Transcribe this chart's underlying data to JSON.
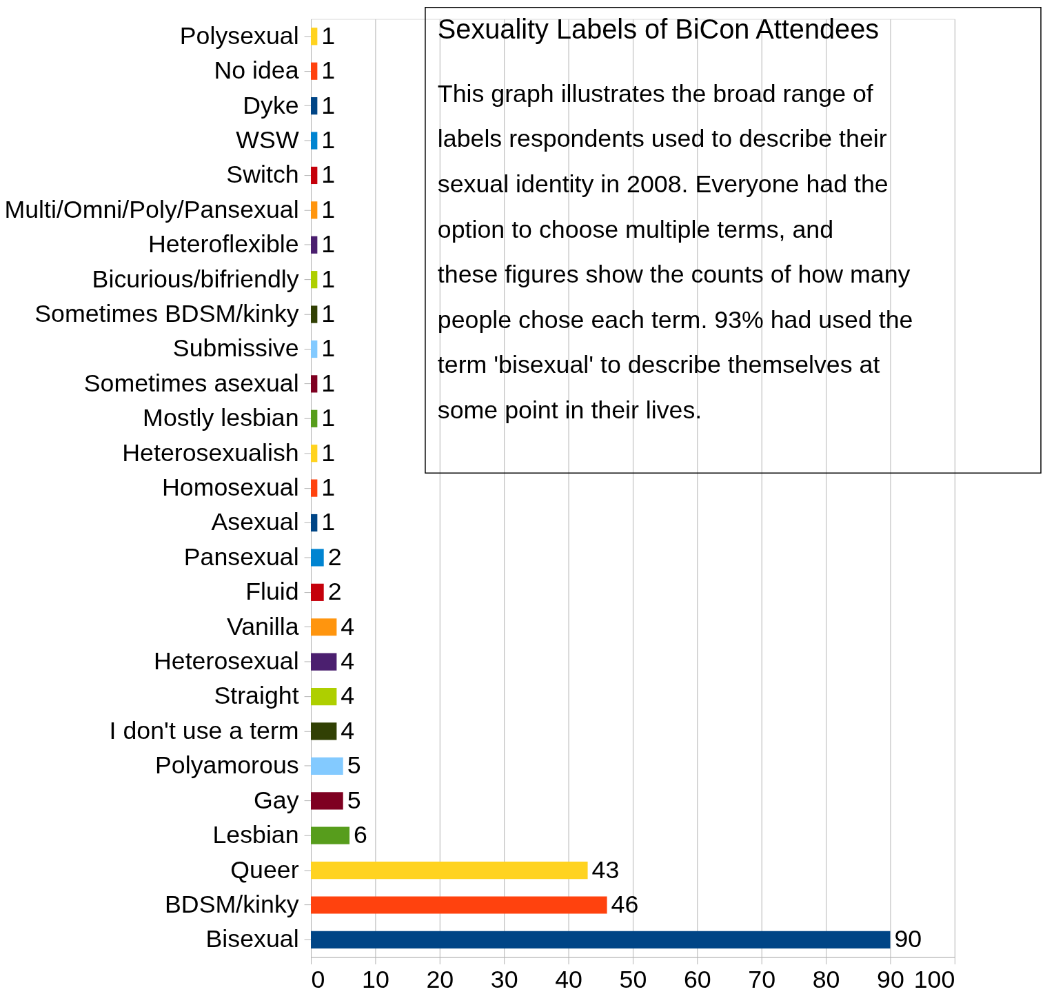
{
  "chart_data": {
    "type": "bar",
    "orientation": "horizontal",
    "title": "Sexuality Labels of BiCon Attendees",
    "annotations": [
      "This graph illustrates the broad range of labels respondents used to describe their sexual identity in 2008. Everyone had the option to choose multiple terms, and these figures show the counts of how many people chose each term. 93% had used the term 'bisexual' to describe themselves at some point in their lives."
    ],
    "categories": [
      "Polysexual",
      "No idea",
      "Dyke",
      "WSW",
      "Switch",
      "Multi/Omni/Poly/Pansexual",
      "Heteroflexible",
      "Bicurious/bifriendly",
      "Sometimes BDSM/kinky",
      "Submissive",
      "Sometimes asexual",
      "Mostly lesbian",
      "Heterosexualish",
      "Homosexual",
      "Asexual",
      "Pansexual",
      "Fluid",
      "Vanilla",
      "Heterosexual",
      "Straight",
      "I don't use a term",
      "Polyamorous",
      "Gay",
      "Lesbian",
      "Queer",
      "BDSM/kinky",
      "Bisexual"
    ],
    "values": [
      1,
      1,
      1,
      1,
      1,
      1,
      1,
      1,
      1,
      1,
      1,
      1,
      1,
      1,
      1,
      2,
      2,
      4,
      4,
      4,
      4,
      5,
      5,
      6,
      43,
      46,
      90
    ],
    "colors": [
      "#ffd320",
      "#ff420e",
      "#004586",
      "#0084d1",
      "#c5000b",
      "#ff950e",
      "#4b1f6f",
      "#aecf00",
      "#314004",
      "#83caff",
      "#7e0021",
      "#579d1c",
      "#ffd320",
      "#ff420e",
      "#004586",
      "#0084d1",
      "#c5000b",
      "#ff950e",
      "#4b1f6f",
      "#aecf00",
      "#314004",
      "#83caff",
      "#7e0021",
      "#579d1c",
      "#ffd320",
      "#ff420e",
      "#004586"
    ],
    "xlim": [
      0,
      100
    ],
    "xticks": [
      0,
      10,
      20,
      30,
      40,
      50,
      60,
      70,
      80,
      90,
      100
    ],
    "grid": "x",
    "data_labels": true
  }
}
